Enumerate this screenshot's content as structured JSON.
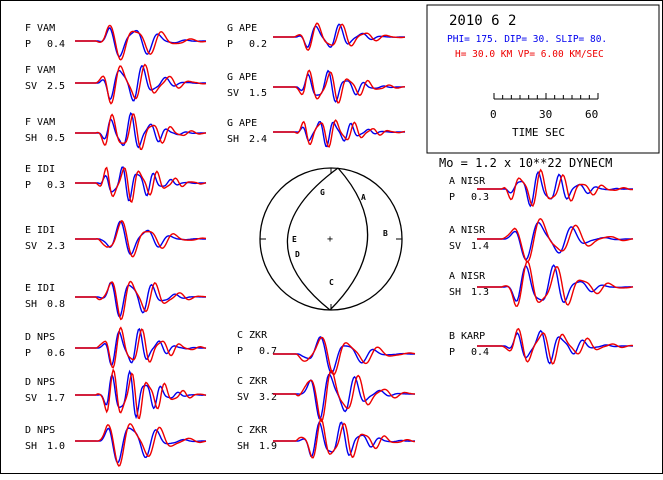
{
  "header": {
    "date": "2010  6  2",
    "mechanism": "PHI= 175. DIP= 30. SLIP=  80.",
    "depth": "H= 30.0 KM  VP= 6.00 KM/SEC",
    "time_ticks": [
      "0",
      "30",
      "60"
    ],
    "time_label": "TIME  SEC",
    "moment": "Mo =  1.2 x 10**22 DYNECM"
  },
  "colors": {
    "observed": "#0000ee",
    "synthetic": "#ee0000",
    "ink": "#000000"
  },
  "mechanism_plot": {
    "labels": [
      "G",
      "A",
      "B",
      "E",
      "D",
      "C"
    ],
    "center_mark": "+"
  },
  "traces": [
    {
      "station": "F VAM",
      "phase": "P",
      "amp": "0.4"
    },
    {
      "station": "F VAM",
      "phase": "SV",
      "amp": "2.5"
    },
    {
      "station": "F VAM",
      "phase": "SH",
      "amp": "0.5"
    },
    {
      "station": "E IDI",
      "phase": "P",
      "amp": "0.3"
    },
    {
      "station": "E IDI",
      "phase": "SV",
      "amp": "2.3"
    },
    {
      "station": "E IDI",
      "phase": "SH",
      "amp": "0.8"
    },
    {
      "station": "D NPS",
      "phase": "P",
      "amp": "0.6"
    },
    {
      "station": "D NPS",
      "phase": "SV",
      "amp": "1.7"
    },
    {
      "station": "D NPS",
      "phase": "SH",
      "amp": "1.0"
    },
    {
      "station": "G APE",
      "phase": "P",
      "amp": "0.2"
    },
    {
      "station": "G APE",
      "phase": "SV",
      "amp": "1.5"
    },
    {
      "station": "G APE",
      "phase": "SH",
      "amp": "2.4"
    },
    {
      "station": "C ZKR",
      "phase": "P",
      "amp": "0.7"
    },
    {
      "station": "C ZKR",
      "phase": "SV",
      "amp": "3.2"
    },
    {
      "station": "C ZKR",
      "phase": "SH",
      "amp": "1.9"
    },
    {
      "station": "A NISR",
      "phase": "P",
      "amp": "0.3"
    },
    {
      "station": "A NISR",
      "phase": "SV",
      "amp": "1.4"
    },
    {
      "station": "A NISR",
      "phase": "SH",
      "amp": "1.3"
    },
    {
      "station": "B KARP",
      "phase": "P",
      "amp": "0.4"
    }
  ]
}
